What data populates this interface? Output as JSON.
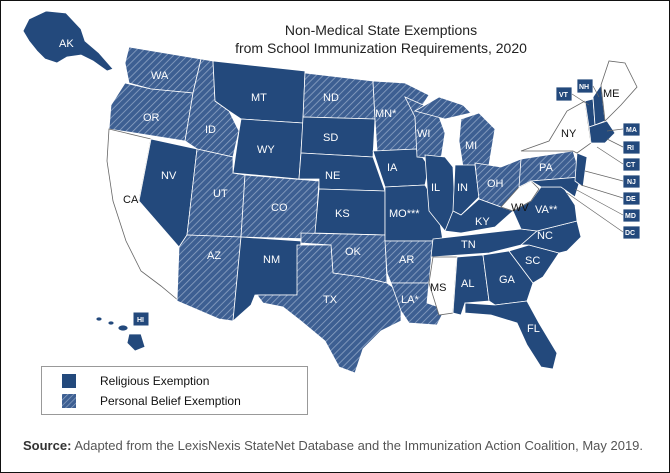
{
  "title_line1": "Non-Medical State Exemptions",
  "title_line2": "from School Immunization Requirements, 2020",
  "colors": {
    "religious": "#23497c",
    "personal_belief_base": "#3d5f92",
    "personal_belief_hatch": "#8ea4c4",
    "none": "#ffffff"
  },
  "legend": {
    "religious": "Religious Exemption",
    "personal_belief": "Personal Belief Exemption"
  },
  "states": {
    "ak": {
      "label": "AK",
      "category": "religious"
    },
    "wa": {
      "label": "WA",
      "category": "personal"
    },
    "or": {
      "label": "OR",
      "category": "personal"
    },
    "ca": {
      "label": "CA",
      "category": "none"
    },
    "nv": {
      "label": "NV",
      "category": "religious"
    },
    "id": {
      "label": "ID",
      "category": "personal"
    },
    "mt": {
      "label": "MT",
      "category": "religious"
    },
    "wy": {
      "label": "WY",
      "category": "religious"
    },
    "ut": {
      "label": "UT",
      "category": "personal"
    },
    "co": {
      "label": "CO",
      "category": "personal"
    },
    "az": {
      "label": "AZ",
      "category": "personal"
    },
    "nm": {
      "label": "NM",
      "category": "religious"
    },
    "nd": {
      "label": "ND",
      "category": "personal"
    },
    "sd": {
      "label": "SD",
      "category": "religious"
    },
    "ne": {
      "label": "NE",
      "category": "religious"
    },
    "ks": {
      "label": "KS",
      "category": "religious"
    },
    "ok": {
      "label": "OK",
      "category": "personal"
    },
    "tx": {
      "label": "TX",
      "category": "personal"
    },
    "mn": {
      "label": "MN*",
      "category": "personal"
    },
    "ia": {
      "label": "IA",
      "category": "religious"
    },
    "mo": {
      "label": "MO***",
      "category": "religious"
    },
    "ar": {
      "label": "AR",
      "category": "personal"
    },
    "la": {
      "label": "LA*",
      "category": "personal"
    },
    "wi": {
      "label": "WI",
      "category": "personal"
    },
    "il": {
      "label": "IL",
      "category": "religious"
    },
    "mi": {
      "label": "MI",
      "category": "personal"
    },
    "in": {
      "label": "IN",
      "category": "religious"
    },
    "oh": {
      "label": "OH",
      "category": "personal"
    },
    "ky": {
      "label": "KY",
      "category": "religious"
    },
    "tn": {
      "label": "TN",
      "category": "religious"
    },
    "ms": {
      "label": "MS",
      "category": "none"
    },
    "al": {
      "label": "AL",
      "category": "religious"
    },
    "ga": {
      "label": "GA",
      "category": "religious"
    },
    "fl": {
      "label": "FL",
      "category": "religious"
    },
    "sc": {
      "label": "SC",
      "category": "religious"
    },
    "nc": {
      "label": "NC",
      "category": "religious"
    },
    "va": {
      "label": "VA**",
      "category": "religious"
    },
    "wv": {
      "label": "WV",
      "category": "none"
    },
    "pa": {
      "label": "PA",
      "category": "personal"
    },
    "ny": {
      "label": "NY",
      "category": "none"
    },
    "vt": {
      "label": "VT",
      "category": "religious"
    },
    "nh": {
      "label": "NH",
      "category": "religious"
    },
    "me": {
      "label": "ME",
      "category": "none"
    },
    "hi": {
      "label": "HI",
      "category": "religious"
    },
    "ma": {
      "label": "MA",
      "category": "religious"
    },
    "ri": {
      "label": "RI",
      "category": "religious"
    },
    "ct": {
      "label": "CT",
      "category": "religious"
    },
    "nj": {
      "label": "NJ",
      "category": "religious"
    },
    "de": {
      "label": "DE",
      "category": "religious"
    },
    "md": {
      "label": "MD",
      "category": "religious"
    },
    "dc": {
      "label": "DC",
      "category": "religious"
    }
  },
  "source": {
    "label": "Source:",
    "text": "Adapted from the LexisNexis StateNet Database and the Immunization Action Coalition, May 2019."
  }
}
